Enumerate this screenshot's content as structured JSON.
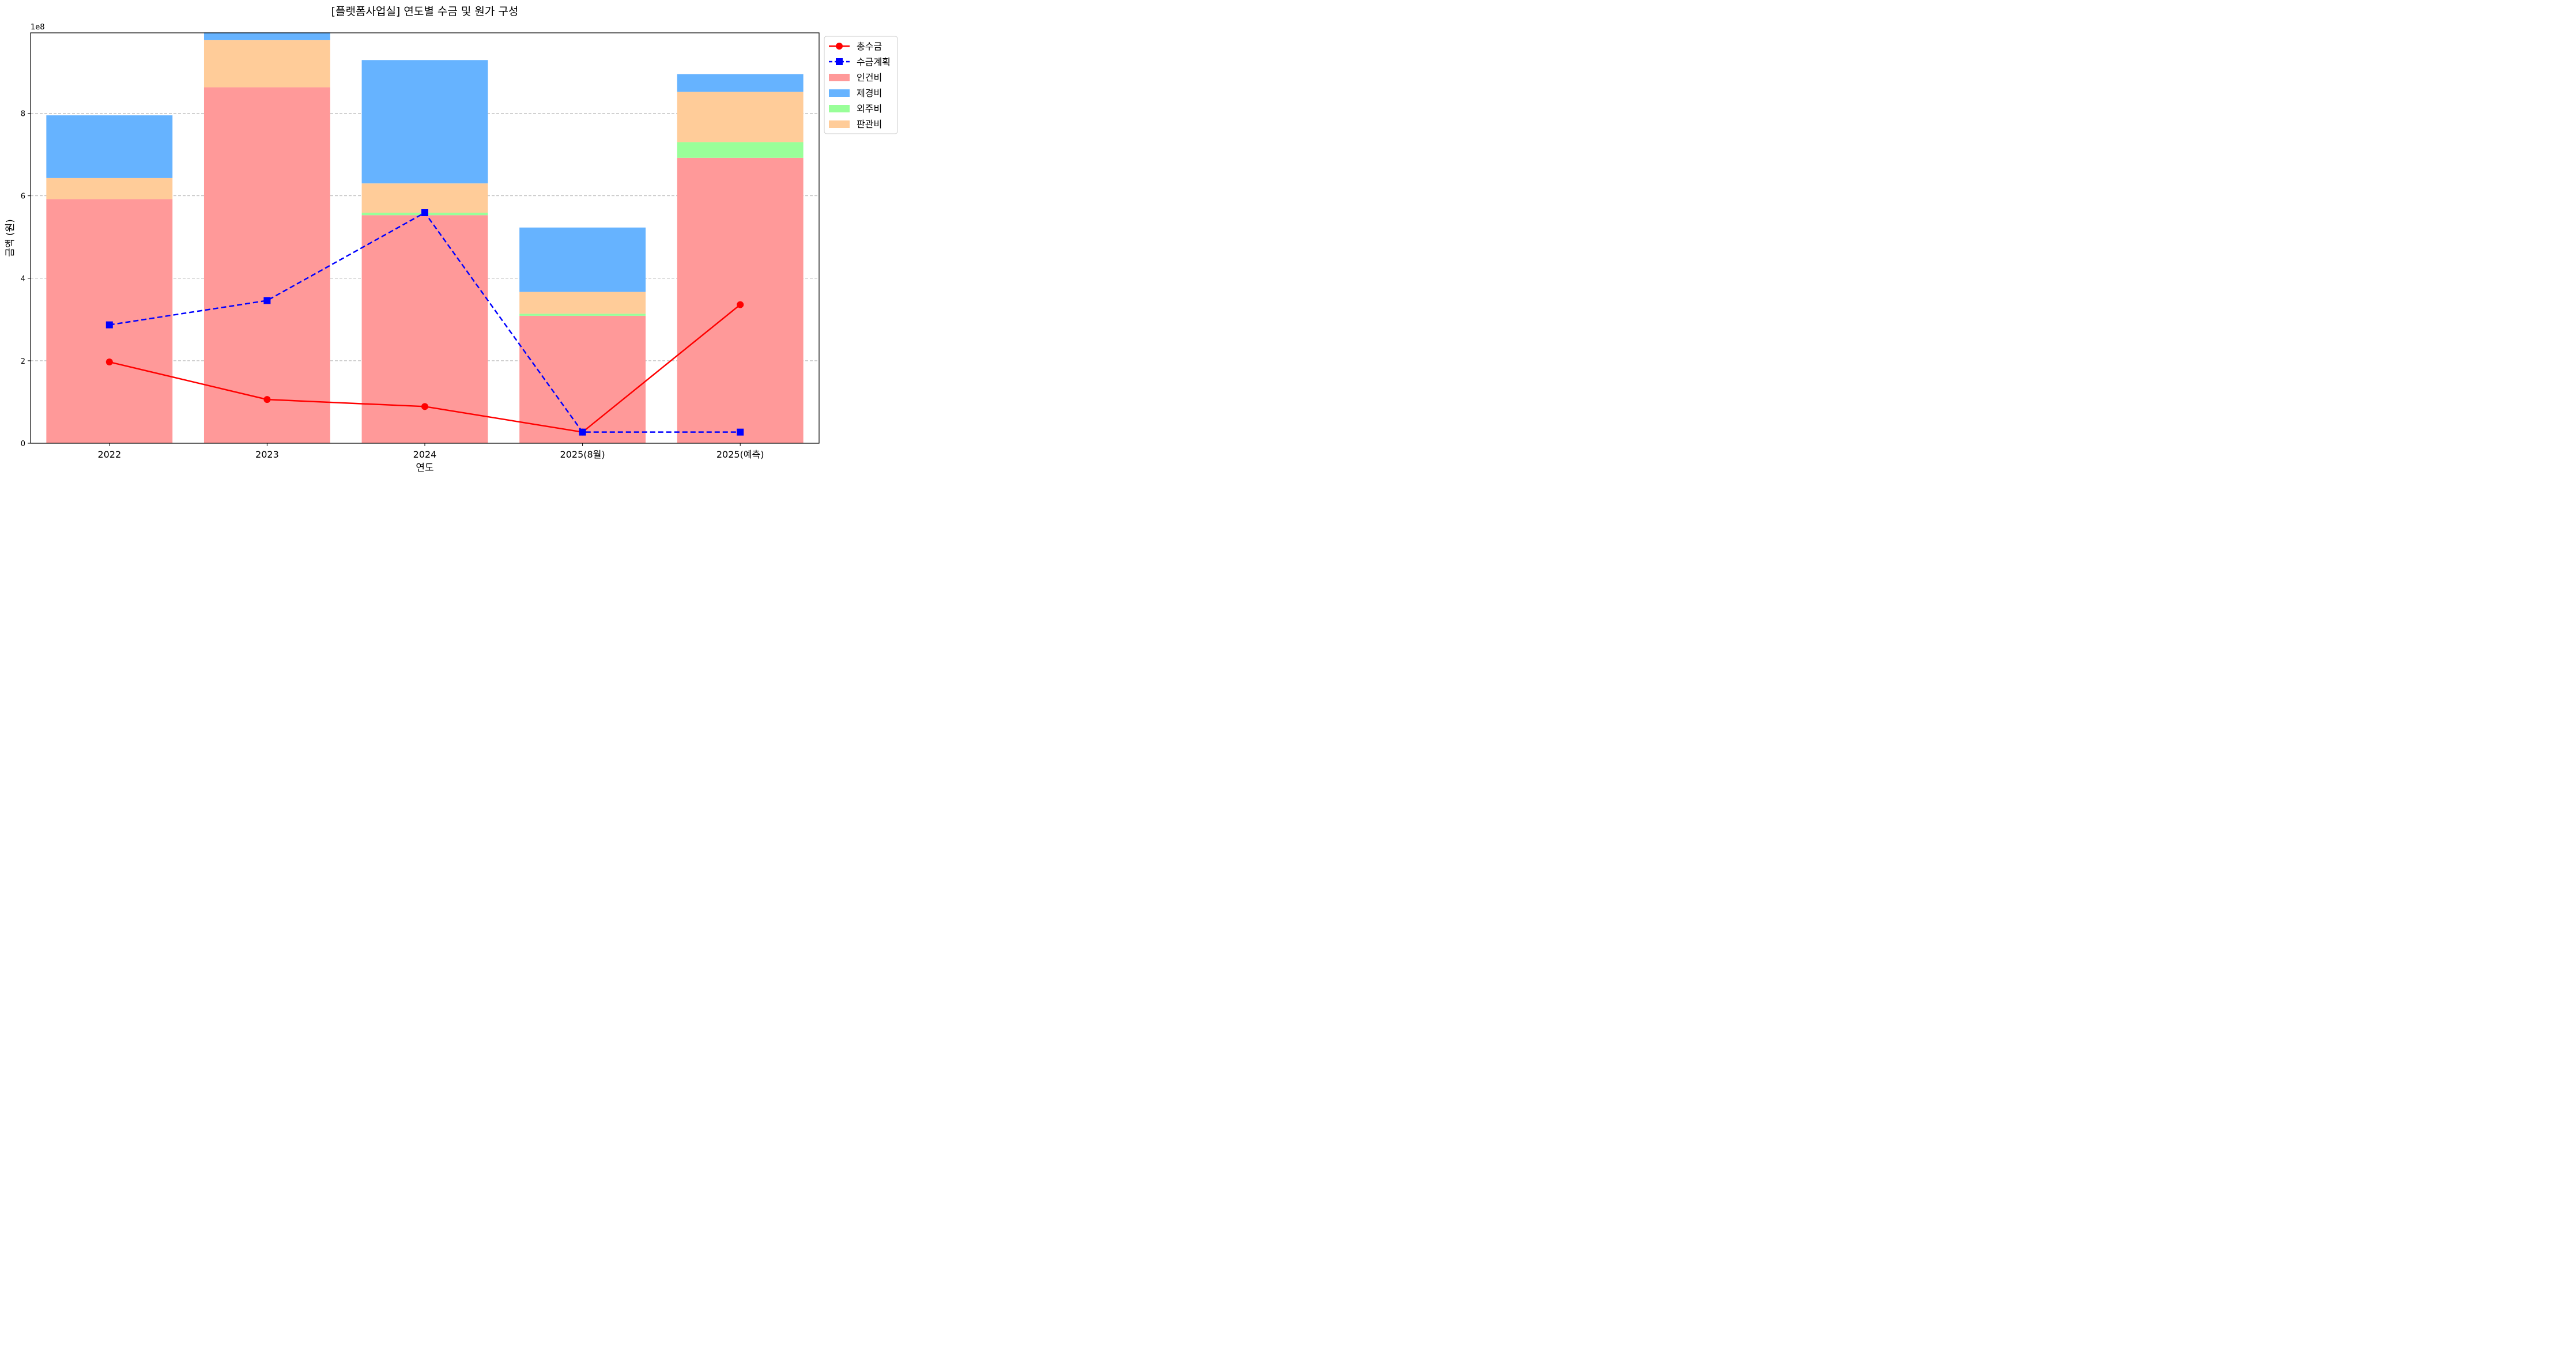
{
  "chart_data": {
    "type": "bar",
    "subtype": "stacked-bar-with-lines",
    "title": "[플랫폼사업실] 연도별 수금 및 원가 구성",
    "xlabel": "연도",
    "ylabel": "금액 (원)",
    "y_offset_label": "1e8",
    "ylim": [
      0,
      9.95
    ],
    "y_scale_factor": 100000000,
    "y_ticks": [
      0,
      2,
      4,
      6,
      8
    ],
    "grid": "y-dashed",
    "legend_position": "outside-right-top",
    "categories": [
      "2022",
      "2023",
      "2024",
      "2025(8월)",
      "2025(예측)"
    ],
    "bar_series": [
      {
        "name": "인건비",
        "color": "#ff9999",
        "values": [
          5.92,
          8.63,
          5.53,
          3.09,
          6.92
        ]
      },
      {
        "name": "외주비",
        "color": "#99ff99",
        "values": [
          0.0,
          0.0,
          0.06,
          0.05,
          0.38
        ]
      },
      {
        "name": "판관비",
        "color": "#ffcc99",
        "values": [
          0.51,
          1.15,
          0.71,
          0.53,
          1.22
        ]
      },
      {
        "name": "제경비",
        "color": "#66b3ff",
        "values": [
          1.52,
          0.18,
          2.99,
          1.56,
          0.43
        ]
      }
    ],
    "line_series": [
      {
        "name": "총수금",
        "color": "#ff0000",
        "style": "solid",
        "marker": "circle",
        "values": [
          1.97,
          1.06,
          0.89,
          0.27,
          3.36
        ]
      },
      {
        "name": "수금계획",
        "color": "#0000ff",
        "style": "dashed",
        "marker": "square",
        "values": [
          2.87,
          3.46,
          5.59,
          0.27,
          0.27
        ]
      }
    ],
    "legend": [
      "총수금",
      "수금계획",
      "인건비",
      "제경비",
      "외주비",
      "판관비"
    ]
  }
}
